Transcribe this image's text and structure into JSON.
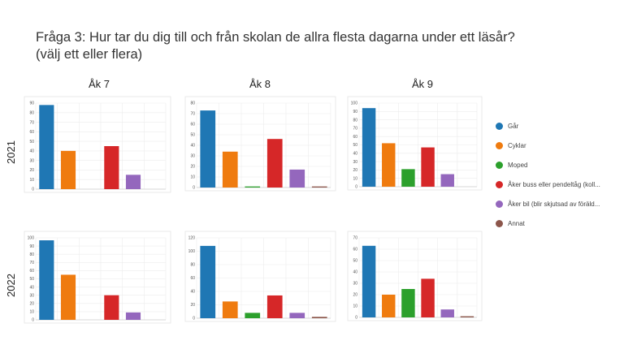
{
  "title": {
    "line1": "Fråga 3:  Hur tar du dig till och från skolan de allra flesta dagarna under ett läsår?",
    "line2": "(välj ett eller flera)"
  },
  "columns": [
    "Åk 7",
    "Åk 8",
    "Åk 9"
  ],
  "rows": [
    "2021",
    "2022"
  ],
  "colors": {
    "Går": "#1f77b4",
    "Cyklar": "#ef7b0f",
    "Moped": "#2ca02c",
    "Åker buss eller pendeltåg (koll...": "#d62728",
    "Åker bil (blir skjutsad av föräld...": "#9467bd",
    "Annat": "#8c564b"
  },
  "legend": [
    {
      "label": "Går",
      "color": "#1f77b4"
    },
    {
      "label": "Cyklar",
      "color": "#ef7b0f"
    },
    {
      "label": "Moped",
      "color": "#2ca02c"
    },
    {
      "label": "Åker buss eller pendeltåg (koll...",
      "color": "#d62728"
    },
    {
      "label": "Åker bil (blir skjutsad av föräld...",
      "color": "#9467bd"
    },
    {
      "label": "Annat",
      "color": "#8c564b"
    }
  ],
  "chart_data": [
    {
      "type": "bar",
      "row": "2021",
      "column": "Åk 7",
      "categories": [
        "Går",
        "Cyklar",
        "Moped",
        "Åker buss eller pendeltåg (koll...",
        "Åker bil (blir skjutsad av föräld...",
        "Annat"
      ],
      "values": [
        88,
        40,
        0,
        45,
        15,
        0
      ],
      "ylim": [
        0,
        90
      ],
      "yticks": [
        0,
        10,
        20,
        30,
        40,
        50,
        60,
        70,
        80,
        90
      ]
    },
    {
      "type": "bar",
      "row": "2021",
      "column": "Åk 8",
      "categories": [
        "Går",
        "Cyklar",
        "Moped",
        "Åker buss eller pendeltåg (koll...",
        "Åker bil (blir skjutsad av föräld...",
        "Annat"
      ],
      "values": [
        73,
        34,
        1,
        46,
        17,
        1
      ],
      "ylim": [
        0,
        80
      ],
      "yticks": [
        0,
        10,
        20,
        30,
        40,
        50,
        60,
        70,
        80
      ]
    },
    {
      "type": "bar",
      "row": "2021",
      "column": "Åk 9",
      "categories": [
        "Går",
        "Cyklar",
        "Moped",
        "Åker buss eller pendeltåg (koll...",
        "Åker bil (blir skjutsad av föräld...",
        "Annat"
      ],
      "values": [
        94,
        52,
        21,
        47,
        15,
        0
      ],
      "ylim": [
        0,
        100
      ],
      "yticks": [
        0,
        10,
        20,
        30,
        40,
        50,
        60,
        70,
        80,
        90,
        100
      ]
    },
    {
      "type": "bar",
      "row": "2022",
      "column": "Åk 7",
      "categories": [
        "Går",
        "Cyklar",
        "Moped",
        "Åker buss eller pendeltåg (koll...",
        "Åker bil (blir skjutsad av föräld...",
        "Annat"
      ],
      "values": [
        97,
        55,
        0,
        30,
        9,
        0
      ],
      "ylim": [
        0,
        100
      ],
      "yticks": [
        0,
        10,
        20,
        30,
        40,
        50,
        60,
        70,
        80,
        90,
        100
      ]
    },
    {
      "type": "bar",
      "row": "2022",
      "column": "Åk 8",
      "categories": [
        "Går",
        "Cyklar",
        "Moped",
        "Åker buss eller pendeltåg (koll...",
        "Åker bil (blir skjutsad av föräld...",
        "Annat"
      ],
      "values": [
        108,
        25,
        8,
        34,
        8,
        2
      ],
      "ylim": [
        0,
        120
      ],
      "yticks": [
        0,
        20,
        40,
        60,
        80,
        100,
        120
      ]
    },
    {
      "type": "bar",
      "row": "2022",
      "column": "Åk 9",
      "categories": [
        "Går",
        "Cyklar",
        "Moped",
        "Åker buss eller pendeltåg (koll...",
        "Åker bil (blir skjutsad av föräld...",
        "Annat"
      ],
      "values": [
        63,
        20,
        25,
        34,
        7,
        1
      ],
      "ylim": [
        0,
        70
      ],
      "yticks": [
        0,
        10,
        20,
        30,
        40,
        50,
        60,
        70
      ]
    }
  ]
}
